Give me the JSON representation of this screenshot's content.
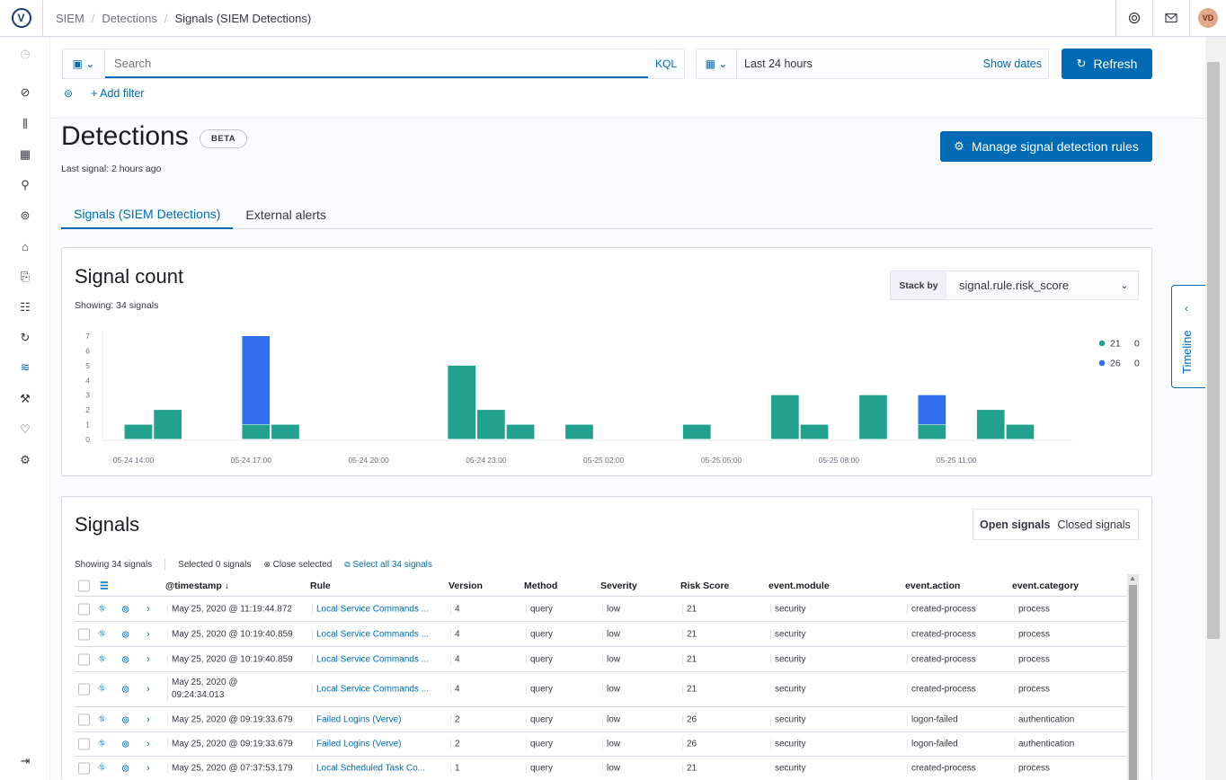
{
  "header": {
    "logo_letter": "V",
    "breadcrumbs": [
      "SIEM",
      "Detections",
      "Signals (SIEM Detections)"
    ],
    "user_initials": "VD"
  },
  "querybar": {
    "search_placeholder": "Search",
    "language": "KQL",
    "date_range": "Last 24 hours",
    "show_dates": "Show dates",
    "refresh_label": "Refresh",
    "add_filter": "+ Add filter"
  },
  "page": {
    "title": "Detections",
    "badge": "BETA",
    "last_signal": "Last signal: 2 hours ago",
    "manage_button": "Manage signal detection rules",
    "tabs": [
      {
        "label": "Signals (SIEM Detections)",
        "active": true
      },
      {
        "label": "External alerts",
        "active": false
      }
    ]
  },
  "signal_count": {
    "title": "Signal count",
    "showing": "Showing: 34 signals",
    "stack_by_label": "Stack by",
    "stack_by_value": "signal.rule.risk_score"
  },
  "chart_data": {
    "type": "bar",
    "stacked": true,
    "x_ticks": [
      "05-24 14:00",
      "05-24 17:00",
      "05-24 20:00",
      "05-24 23:00",
      "05-25 02:00",
      "05-25 05:00",
      "05-25 08:00",
      "05-25 11:00"
    ],
    "y_ticks": [
      0,
      1,
      2,
      3,
      4,
      5,
      6,
      7
    ],
    "ylim": [
      0,
      7
    ],
    "bin_hours": 0.75,
    "bins": [
      {
        "start": "05-24 13:45",
        "21": 1,
        "26": 0
      },
      {
        "start": "05-24 14:30",
        "21": 2,
        "26": 0
      },
      {
        "start": "05-24 16:45",
        "21": 1,
        "26": 6
      },
      {
        "start": "05-24 17:30",
        "21": 1,
        "26": 0
      },
      {
        "start": "05-24 22:00",
        "21": 5,
        "26": 0
      },
      {
        "start": "05-24 22:45",
        "21": 2,
        "26": 0
      },
      {
        "start": "05-24 23:30",
        "21": 1,
        "26": 0
      },
      {
        "start": "05-25 01:00",
        "21": 1,
        "26": 0
      },
      {
        "start": "05-25 04:00",
        "21": 1,
        "26": 0
      },
      {
        "start": "05-25 06:15",
        "21": 3,
        "26": 0
      },
      {
        "start": "05-25 07:00",
        "21": 1,
        "26": 0
      },
      {
        "start": "05-25 08:30",
        "21": 3,
        "26": 0
      },
      {
        "start": "05-25 10:00",
        "21": 1,
        "26": 2
      },
      {
        "start": "05-25 11:30",
        "21": 2,
        "26": 0
      },
      {
        "start": "05-25 12:15",
        "21": 1,
        "26": 0
      }
    ],
    "series": [
      {
        "name": "21",
        "color": "#21a18e",
        "legend_value": "0"
      },
      {
        "name": "26",
        "color": "#2f6fec",
        "legend_value": "0"
      }
    ],
    "legend_position": "right",
    "grid": false
  },
  "timeline_tab": "Timeline",
  "signals": {
    "title": "Signals",
    "open_label": "Open signals",
    "closed_label": "Closed signals",
    "showing": "Showing 34 signals",
    "selected": "Selected 0 signals",
    "close_selected": "Close selected",
    "select_all": "Select all 34 signals",
    "columns": [
      "@timestamp",
      "Rule",
      "Version",
      "Method",
      "Severity",
      "Risk Score",
      "event.module",
      "event.action",
      "event.category"
    ],
    "rows": [
      {
        "timestamp": "May 25, 2020 @ 11:19:44.872",
        "rule": "Local Service Commands ...",
        "version": "4",
        "method": "query",
        "severity": "low",
        "risk": "21",
        "module": "security",
        "action": "created-process",
        "category": "process"
      },
      {
        "timestamp": "May 25, 2020 @ 10:19:40.859",
        "rule": "Local Service Commands ...",
        "version": "4",
        "method": "query",
        "severity": "low",
        "risk": "21",
        "module": "security",
        "action": "created-process",
        "category": "process"
      },
      {
        "timestamp": "May 25, 2020 @ 10:19:40.859",
        "rule": "Local Service Commands ...",
        "version": "4",
        "method": "query",
        "severity": "low",
        "risk": "21",
        "module": "security",
        "action": "created-process",
        "category": "process"
      },
      {
        "timestamp_line1": "May 25, 2020 @",
        "timestamp_line2": "09:24:34.013",
        "rule": "Local Service Commands ...",
        "version": "4",
        "method": "query",
        "severity": "low",
        "risk": "21",
        "module": "security",
        "action": "created-process",
        "category": "process"
      },
      {
        "timestamp": "May 25, 2020 @ 09:19:33.679",
        "rule": "Failed Logins (Verve)",
        "version": "2",
        "method": "query",
        "severity": "low",
        "risk": "26",
        "module": "security",
        "action": "logon-failed",
        "category": "authentication"
      },
      {
        "timestamp": "May 25, 2020 @ 09:19:33.679",
        "rule": "Failed Logins (Verve)",
        "version": "2",
        "method": "query",
        "severity": "low",
        "risk": "26",
        "module": "security",
        "action": "logon-failed",
        "category": "authentication"
      },
      {
        "timestamp": "May 25, 2020 @ 07:37:53.179",
        "rule": "Local Scheduled Task Co...",
        "version": "1",
        "method": "query",
        "severity": "low",
        "risk": "21",
        "module": "security",
        "action": "created-process",
        "category": "process"
      }
    ]
  }
}
